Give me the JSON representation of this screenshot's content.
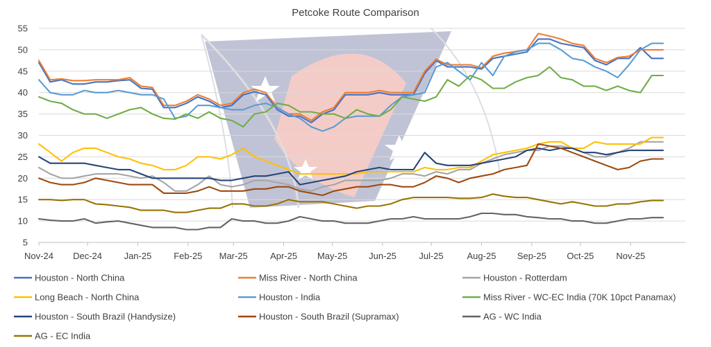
{
  "chart_data": {
    "type": "line",
    "title": "Petcoke Route Comparison",
    "xlabel": "",
    "ylabel": "",
    "ylim": [
      5,
      55
    ],
    "yticks": [
      5,
      10,
      15,
      20,
      25,
      30,
      35,
      40,
      45,
      50,
      55
    ],
    "grid": true,
    "legend_position": "bottom",
    "x_tick_labels": [
      "Nov-24",
      "Dec-24",
      "Jan-25",
      "Feb-25",
      "Mar-25",
      "Apr-25",
      "May-25",
      "Jun-25",
      "Jul-25",
      "Aug-25",
      "Sep-25",
      "Oct-25",
      "Nov-25"
    ],
    "x": [
      "2024-11-01",
      "2024-11-08",
      "2024-11-15",
      "2024-11-22",
      "2024-11-29",
      "2024-12-06",
      "2024-12-13",
      "2024-12-20",
      "2024-12-27",
      "2025-01-03",
      "2025-01-10",
      "2025-01-17",
      "2025-01-24",
      "2025-01-31",
      "2025-02-07",
      "2025-02-14",
      "2025-02-21",
      "2025-02-28",
      "2025-03-07",
      "2025-03-14",
      "2025-03-21",
      "2025-03-28",
      "2025-04-04",
      "2025-04-11",
      "2025-04-18",
      "2025-04-25",
      "2025-05-02",
      "2025-05-09",
      "2025-05-16",
      "2025-05-23",
      "2025-05-30",
      "2025-06-06",
      "2025-06-13",
      "2025-06-20",
      "2025-06-27",
      "2025-07-04",
      "2025-07-11",
      "2025-07-18",
      "2025-07-25",
      "2025-08-01",
      "2025-08-08",
      "2025-08-15",
      "2025-08-22",
      "2025-08-29",
      "2025-09-05",
      "2025-09-12",
      "2025-09-19",
      "2025-09-26",
      "2025-10-03",
      "2025-10-10",
      "2025-10-17",
      "2025-10-24",
      "2025-10-31",
      "2025-11-07",
      "2025-11-14",
      "2025-11-21"
    ],
    "series": [
      {
        "name": "Houston - North China",
        "color": "#4472c4",
        "values": [
          47,
          42.5,
          43,
          42,
          42,
          42.5,
          42.5,
          42.8,
          43,
          41,
          40.8,
          36.5,
          36.5,
          37.5,
          39,
          38,
          36.5,
          37,
          39.5,
          40.2,
          39.5,
          36,
          34.5,
          34.5,
          33,
          35,
          36,
          39.5,
          39.5,
          39.5,
          40,
          39.5,
          39.5,
          39.5,
          44.5,
          47.5,
          46,
          46,
          46,
          45.5,
          48,
          48.5,
          49,
          49.5,
          52.5,
          52.5,
          51.5,
          51,
          50.5,
          47.5,
          46.5,
          48,
          48,
          50.5,
          48,
          48
        ]
      },
      {
        "name": "Miss River - North China",
        "color": "#ed7d31",
        "values": [
          47.5,
          43,
          43.2,
          42.8,
          42.8,
          43,
          43,
          43,
          43.5,
          41.5,
          41.2,
          37,
          37,
          38,
          39.5,
          38.5,
          37,
          37.5,
          40,
          40.8,
          40,
          36.5,
          35,
          35,
          33.5,
          35.5,
          36.5,
          40,
          40,
          40,
          40.5,
          40,
          40,
          40,
          45,
          47.8,
          46.5,
          46.5,
          46.5,
          45.8,
          48.5,
          49.2,
          49.6,
          50,
          53.8,
          53.2,
          52.5,
          51.5,
          51,
          48,
          47,
          48.2,
          48.5,
          50,
          50,
          50
        ]
      },
      {
        "name": "Houston - Rotterdam",
        "color": "#a5a5a5",
        "values": [
          22.5,
          21,
          20,
          20,
          20.5,
          21,
          21,
          21,
          20.5,
          20,
          20.5,
          19,
          17,
          17,
          18.5,
          20.5,
          18.5,
          18,
          18.5,
          19.5,
          19.5,
          19,
          18.5,
          17.5,
          17,
          18,
          18.5,
          19.5,
          19.5,
          19.5,
          19.5,
          20,
          21,
          21,
          20.5,
          21.5,
          21,
          22,
          22,
          23.5,
          24.5,
          25.5,
          26,
          26.5,
          26.5,
          27.5,
          27.5,
          27,
          26,
          25,
          25,
          26,
          27,
          28.5,
          28.5,
          28.5
        ]
      },
      {
        "name": "Long Beach - North China",
        "color": "#ffc000",
        "values": [
          28,
          26,
          24,
          26,
          27,
          27,
          26,
          25,
          24.5,
          23.5,
          23,
          22,
          22,
          23,
          25,
          25,
          24.5,
          25.5,
          27,
          25,
          24,
          23,
          22,
          21,
          21,
          21,
          21,
          21,
          21,
          21.5,
          21.5,
          21.5,
          21.5,
          21.5,
          22.5,
          22,
          22,
          22.5,
          22.5,
          24,
          25.5,
          26,
          26.5,
          27,
          28,
          28.5,
          28.5,
          27,
          27,
          28.5,
          28,
          28,
          28,
          28,
          29.5,
          29.5
        ]
      },
      {
        "name": "Houston - India",
        "color": "#5b9bd5",
        "values": [
          43,
          40,
          39.5,
          39.5,
          40.5,
          40,
          40,
          40.5,
          40,
          39.5,
          39.5,
          38.5,
          34,
          34.5,
          37,
          37,
          36.5,
          36,
          36,
          37,
          37.5,
          36.5,
          35,
          34,
          32,
          31,
          32,
          34,
          34.5,
          34.5,
          34.5,
          37,
          39,
          39.5,
          40,
          46,
          47,
          45,
          43,
          47,
          44,
          48.5,
          49.5,
          50,
          51.5,
          51.5,
          50,
          48,
          47.5,
          46,
          45,
          43.5,
          46.5,
          50,
          51.5,
          51.5
        ]
      },
      {
        "name": "Miss River - WC-EC India (70K 10pct Panamax)",
        "color": "#70ad47",
        "values": [
          39,
          38,
          37.5,
          36,
          35,
          35,
          34,
          35,
          36,
          36.5,
          35,
          34,
          33.8,
          35,
          34,
          35.5,
          34,
          33.5,
          32,
          35,
          35.5,
          37.5,
          37,
          35.5,
          35.5,
          35,
          35,
          34,
          36,
          35,
          34.5,
          36,
          39,
          38.5,
          38,
          39,
          43,
          41.5,
          44,
          43,
          41,
          41,
          42.5,
          43.5,
          44,
          46,
          43.5,
          43,
          41.5,
          41.5,
          40.5,
          41.5,
          40.5,
          40,
          44,
          44
        ]
      },
      {
        "name": "Houston - South Brazil (Handysize)",
        "color": "#264478",
        "values": [
          25,
          23.5,
          23.5,
          23.5,
          23.5,
          23,
          22.5,
          22,
          22,
          21,
          20,
          20,
          20,
          20,
          20,
          20,
          19.5,
          19.5,
          20,
          20.5,
          20.5,
          21,
          21.5,
          18.5,
          19,
          19.5,
          20,
          20.5,
          21.5,
          22,
          22.5,
          22,
          22,
          22,
          26,
          23.5,
          23,
          23,
          23,
          23.5,
          24,
          24.5,
          25,
          26.5,
          27,
          26.5,
          27,
          27,
          26,
          26,
          25.5,
          26,
          26.5,
          26.5,
          26.5,
          26.5
        ]
      },
      {
        "name": "Houston - South Brazil (Supramax)",
        "color": "#9e480e",
        "values": [
          20,
          19,
          18.5,
          18.5,
          19,
          20,
          19.5,
          19,
          18.5,
          18.5,
          18.5,
          16.5,
          16.5,
          16.5,
          17,
          18,
          17,
          17,
          17,
          17.5,
          17.5,
          18,
          18,
          17,
          16.5,
          16,
          17,
          17.5,
          18,
          18,
          18.5,
          18.5,
          18,
          18,
          19,
          20.5,
          20,
          19,
          20,
          20.5,
          21,
          22,
          22.5,
          23,
          28,
          27.5,
          27,
          26,
          25,
          24,
          23,
          22,
          22.5,
          24,
          24.5,
          24.5
        ]
      },
      {
        "name": "AG - WC India",
        "color": "#636363",
        "values": [
          10.5,
          10.2,
          10,
          10,
          10.5,
          9.5,
          9.8,
          10,
          9.5,
          9,
          8.5,
          8.5,
          8.5,
          8,
          8,
          8.5,
          8.5,
          10.5,
          10,
          10,
          9.5,
          9.5,
          10,
          11,
          10.5,
          10,
          10,
          9.5,
          9.5,
          9.5,
          10,
          10.5,
          10.5,
          11,
          10.5,
          10.5,
          10.5,
          10.5,
          11,
          11.8,
          11.8,
          11.5,
          11.5,
          11,
          10.8,
          10.5,
          10.5,
          10,
          10,
          9.5,
          9.5,
          10,
          10.5,
          10.5,
          10.8,
          10.8
        ]
      },
      {
        "name": "AG - EC India",
        "color": "#997300",
        "values": [
          15,
          15,
          14.8,
          15,
          15,
          14,
          13.8,
          13.5,
          13.2,
          12.5,
          12.5,
          12.5,
          12,
          12,
          12.5,
          13,
          13,
          14,
          14,
          13.5,
          13.5,
          14,
          15,
          14.5,
          14.5,
          14.5,
          14,
          13.5,
          13,
          13.5,
          13.5,
          14,
          15,
          15.5,
          15.5,
          15.5,
          15.5,
          15.3,
          15.3,
          15.5,
          16.3,
          15.8,
          15.5,
          15.5,
          15,
          14.5,
          14,
          14.5,
          14,
          13.5,
          13.5,
          14,
          14,
          14.5,
          14.8,
          14.8
        ]
      }
    ]
  }
}
